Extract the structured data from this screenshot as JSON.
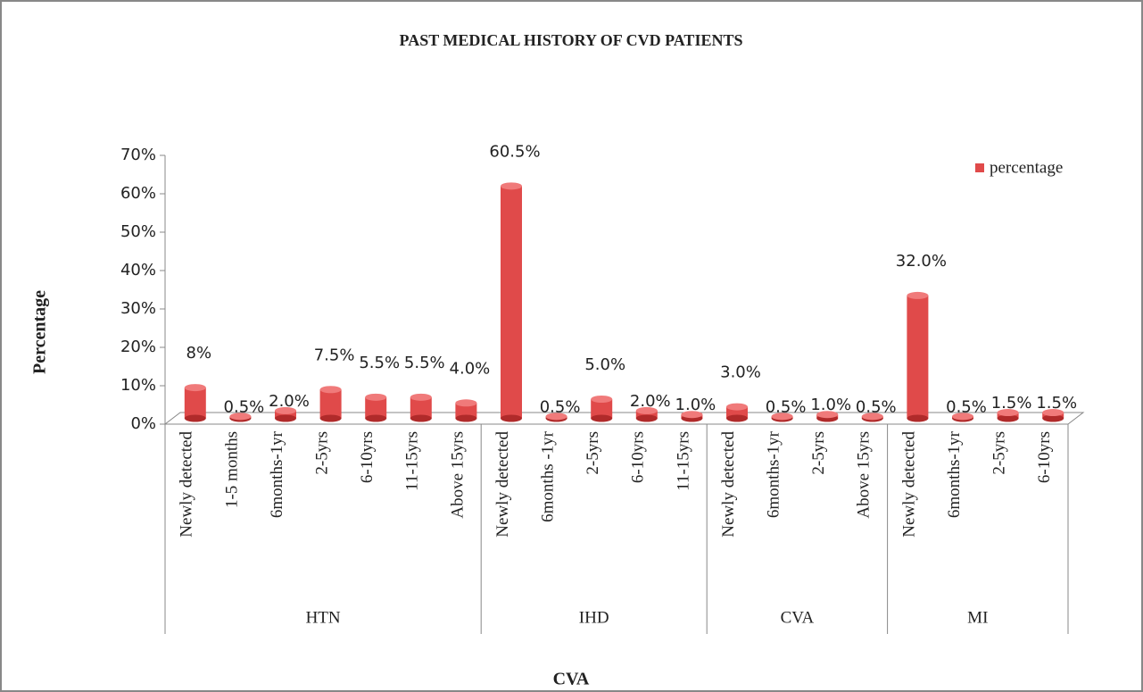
{
  "chart_data": {
    "type": "bar",
    "title": "PAST MEDICAL HISTORY OF CVD PATIENTS",
    "y_label": "Percentage",
    "x_label": "CVA",
    "groups": [
      {
        "name": "HTN",
        "categories": [
          "Newly detected",
          "1-5 months",
          "6months-1yr",
          "2-5yrs",
          "6-10yrs",
          "11-15yrs",
          "Above 15yrs"
        ]
      },
      {
        "name": "IHD",
        "categories": [
          "Newly detected",
          "6months -1yr",
          "2-5yrs",
          "6-10yrs",
          "11-15yrs"
        ]
      },
      {
        "name": "CVA",
        "categories": [
          "Newly detected",
          "6months-1yr",
          "2-5yrs",
          "Above 15yrs"
        ]
      },
      {
        "name": "MI",
        "categories": [
          "Newly detected",
          "6months-1yr",
          "2-5yrs",
          "6-10yrs"
        ]
      }
    ],
    "series": [
      {
        "name": "percentage",
        "color": "#e04a4a",
        "values": [
          8,
          0.5,
          2.0,
          7.5,
          5.5,
          5.5,
          4.0,
          60.5,
          0.5,
          5.0,
          2.0,
          1.0,
          3.0,
          0.5,
          1.0,
          0.5,
          32.0,
          0.5,
          1.5,
          1.5
        ],
        "value_labels": [
          "8%",
          "0.5%",
          "2.0%",
          "7.5%",
          "5.5%",
          "5.5%",
          "4.0%",
          "60.5%",
          "0.5%",
          "5.0%",
          "2.0%",
          "1.0%",
          "3.0%",
          "0.5%",
          "1.0%",
          "0.5%",
          "32.0%",
          "0.5%",
          "1.5%",
          "1.5%"
        ]
      }
    ],
    "ylim": [
      0,
      70
    ],
    "yticks": [
      {
        "value": 0,
        "label": "0%"
      },
      {
        "value": 10,
        "label": "10%"
      },
      {
        "value": 20,
        "label": "20%"
      },
      {
        "value": 30,
        "label": "30%"
      },
      {
        "value": 40,
        "label": "40%"
      },
      {
        "value": 50,
        "label": "50%"
      },
      {
        "value": 60,
        "label": "60%"
      },
      {
        "value": 70,
        "label": "70%"
      }
    ],
    "legend": "top-right"
  }
}
